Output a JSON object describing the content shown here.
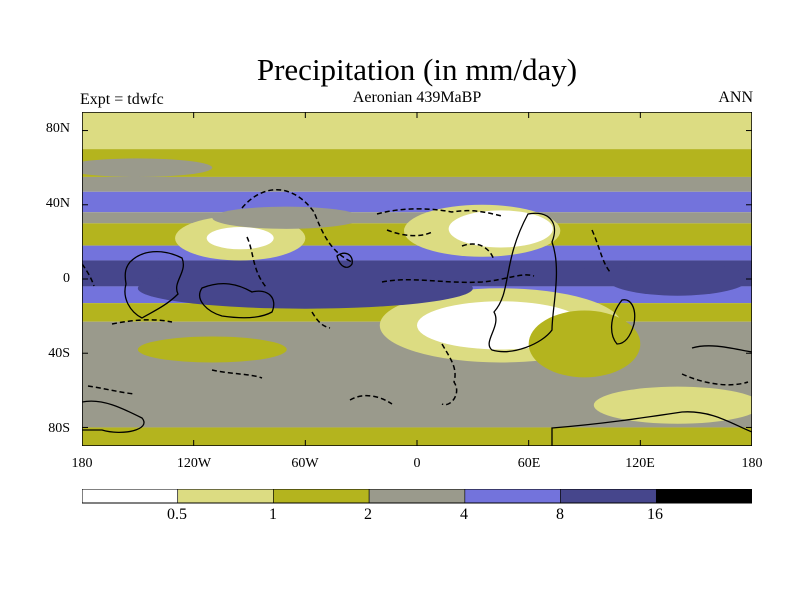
{
  "title": "Precipitation (in mm/day)",
  "left_label": "Expt = tdwfc",
  "subtitle": "Aeronian 439MaBP",
  "season": "ANN",
  "y_ticks": [
    "80N",
    "40N",
    "0",
    "40S",
    "80S"
  ],
  "x_ticks": [
    "180",
    "120W",
    "60W",
    "0",
    "60E",
    "120E",
    "180"
  ],
  "colorbar": {
    "labels": [
      "0.5",
      "1",
      "2",
      "4",
      "8",
      "16"
    ],
    "colors": [
      "#ffffff",
      "#dcdc82",
      "#b4b41e",
      "#9a9a8c",
      "#7373dc",
      "#46468c",
      "#000000"
    ]
  },
  "map_data": {
    "lon_range": [
      -180,
      180
    ],
    "lat_range": [
      -90,
      90
    ],
    "bands": [
      {
        "lat": [
          70,
          90
        ],
        "level": 1
      },
      {
        "lat": [
          55,
          70
        ],
        "level": 2
      },
      {
        "lat": [
          47,
          55
        ],
        "level": 3
      },
      {
        "lat": [
          36,
          47
        ],
        "level": 4
      },
      {
        "lat": [
          30,
          36
        ],
        "level": 3
      },
      {
        "lat": [
          18,
          30
        ],
        "level": 2
      },
      {
        "lat": [
          10,
          18
        ],
        "level": 4
      },
      {
        "lat": [
          -4,
          10
        ],
        "level": 5
      },
      {
        "lat": [
          -13,
          -4
        ],
        "level": 4
      },
      {
        "lat": [
          -23,
          -13
        ],
        "level": 2
      },
      {
        "lat": [
          -80,
          -23
        ],
        "level": 3
      },
      {
        "lat": [
          -90,
          -80
        ],
        "level": 2
      }
    ],
    "patches": [
      {
        "lon": -95,
        "lat": 22,
        "rx": 35,
        "ry": 12,
        "level": 1
      },
      {
        "lon": -95,
        "lat": 22,
        "rx": 18,
        "ry": 6,
        "level": 0
      },
      {
        "lon": 35,
        "lat": 26,
        "rx": 42,
        "ry": 14,
        "level": 1
      },
      {
        "lon": 45,
        "lat": 27,
        "rx": 28,
        "ry": 10,
        "level": 0
      },
      {
        "lon": 45,
        "lat": -25,
        "rx": 65,
        "ry": 20,
        "level": 1
      },
      {
        "lon": 45,
        "lat": -25,
        "rx": 45,
        "ry": 13,
        "level": 0
      },
      {
        "lon": 90,
        "lat": -35,
        "rx": 30,
        "ry": 18,
        "level": 2
      },
      {
        "lon": -60,
        "lat": -5,
        "rx": 90,
        "ry": 11,
        "level": 5
      },
      {
        "lon": 140,
        "lat": 0,
        "rx": 38,
        "ry": 9,
        "level": 5
      },
      {
        "lon": 100,
        "lat": 2,
        "rx": 15,
        "ry": 5,
        "level": 5
      },
      {
        "lon": -70,
        "lat": 33,
        "rx": 40,
        "ry": 6,
        "level": 3
      },
      {
        "lon": 140,
        "lat": -68,
        "rx": 45,
        "ry": 10,
        "level": 1
      },
      {
        "lon": -110,
        "lat": -38,
        "rx": 40,
        "ry": 7,
        "level": 2
      },
      {
        "lon": -150,
        "lat": 60,
        "rx": 40,
        "ry": 5,
        "level": 3
      }
    ]
  }
}
